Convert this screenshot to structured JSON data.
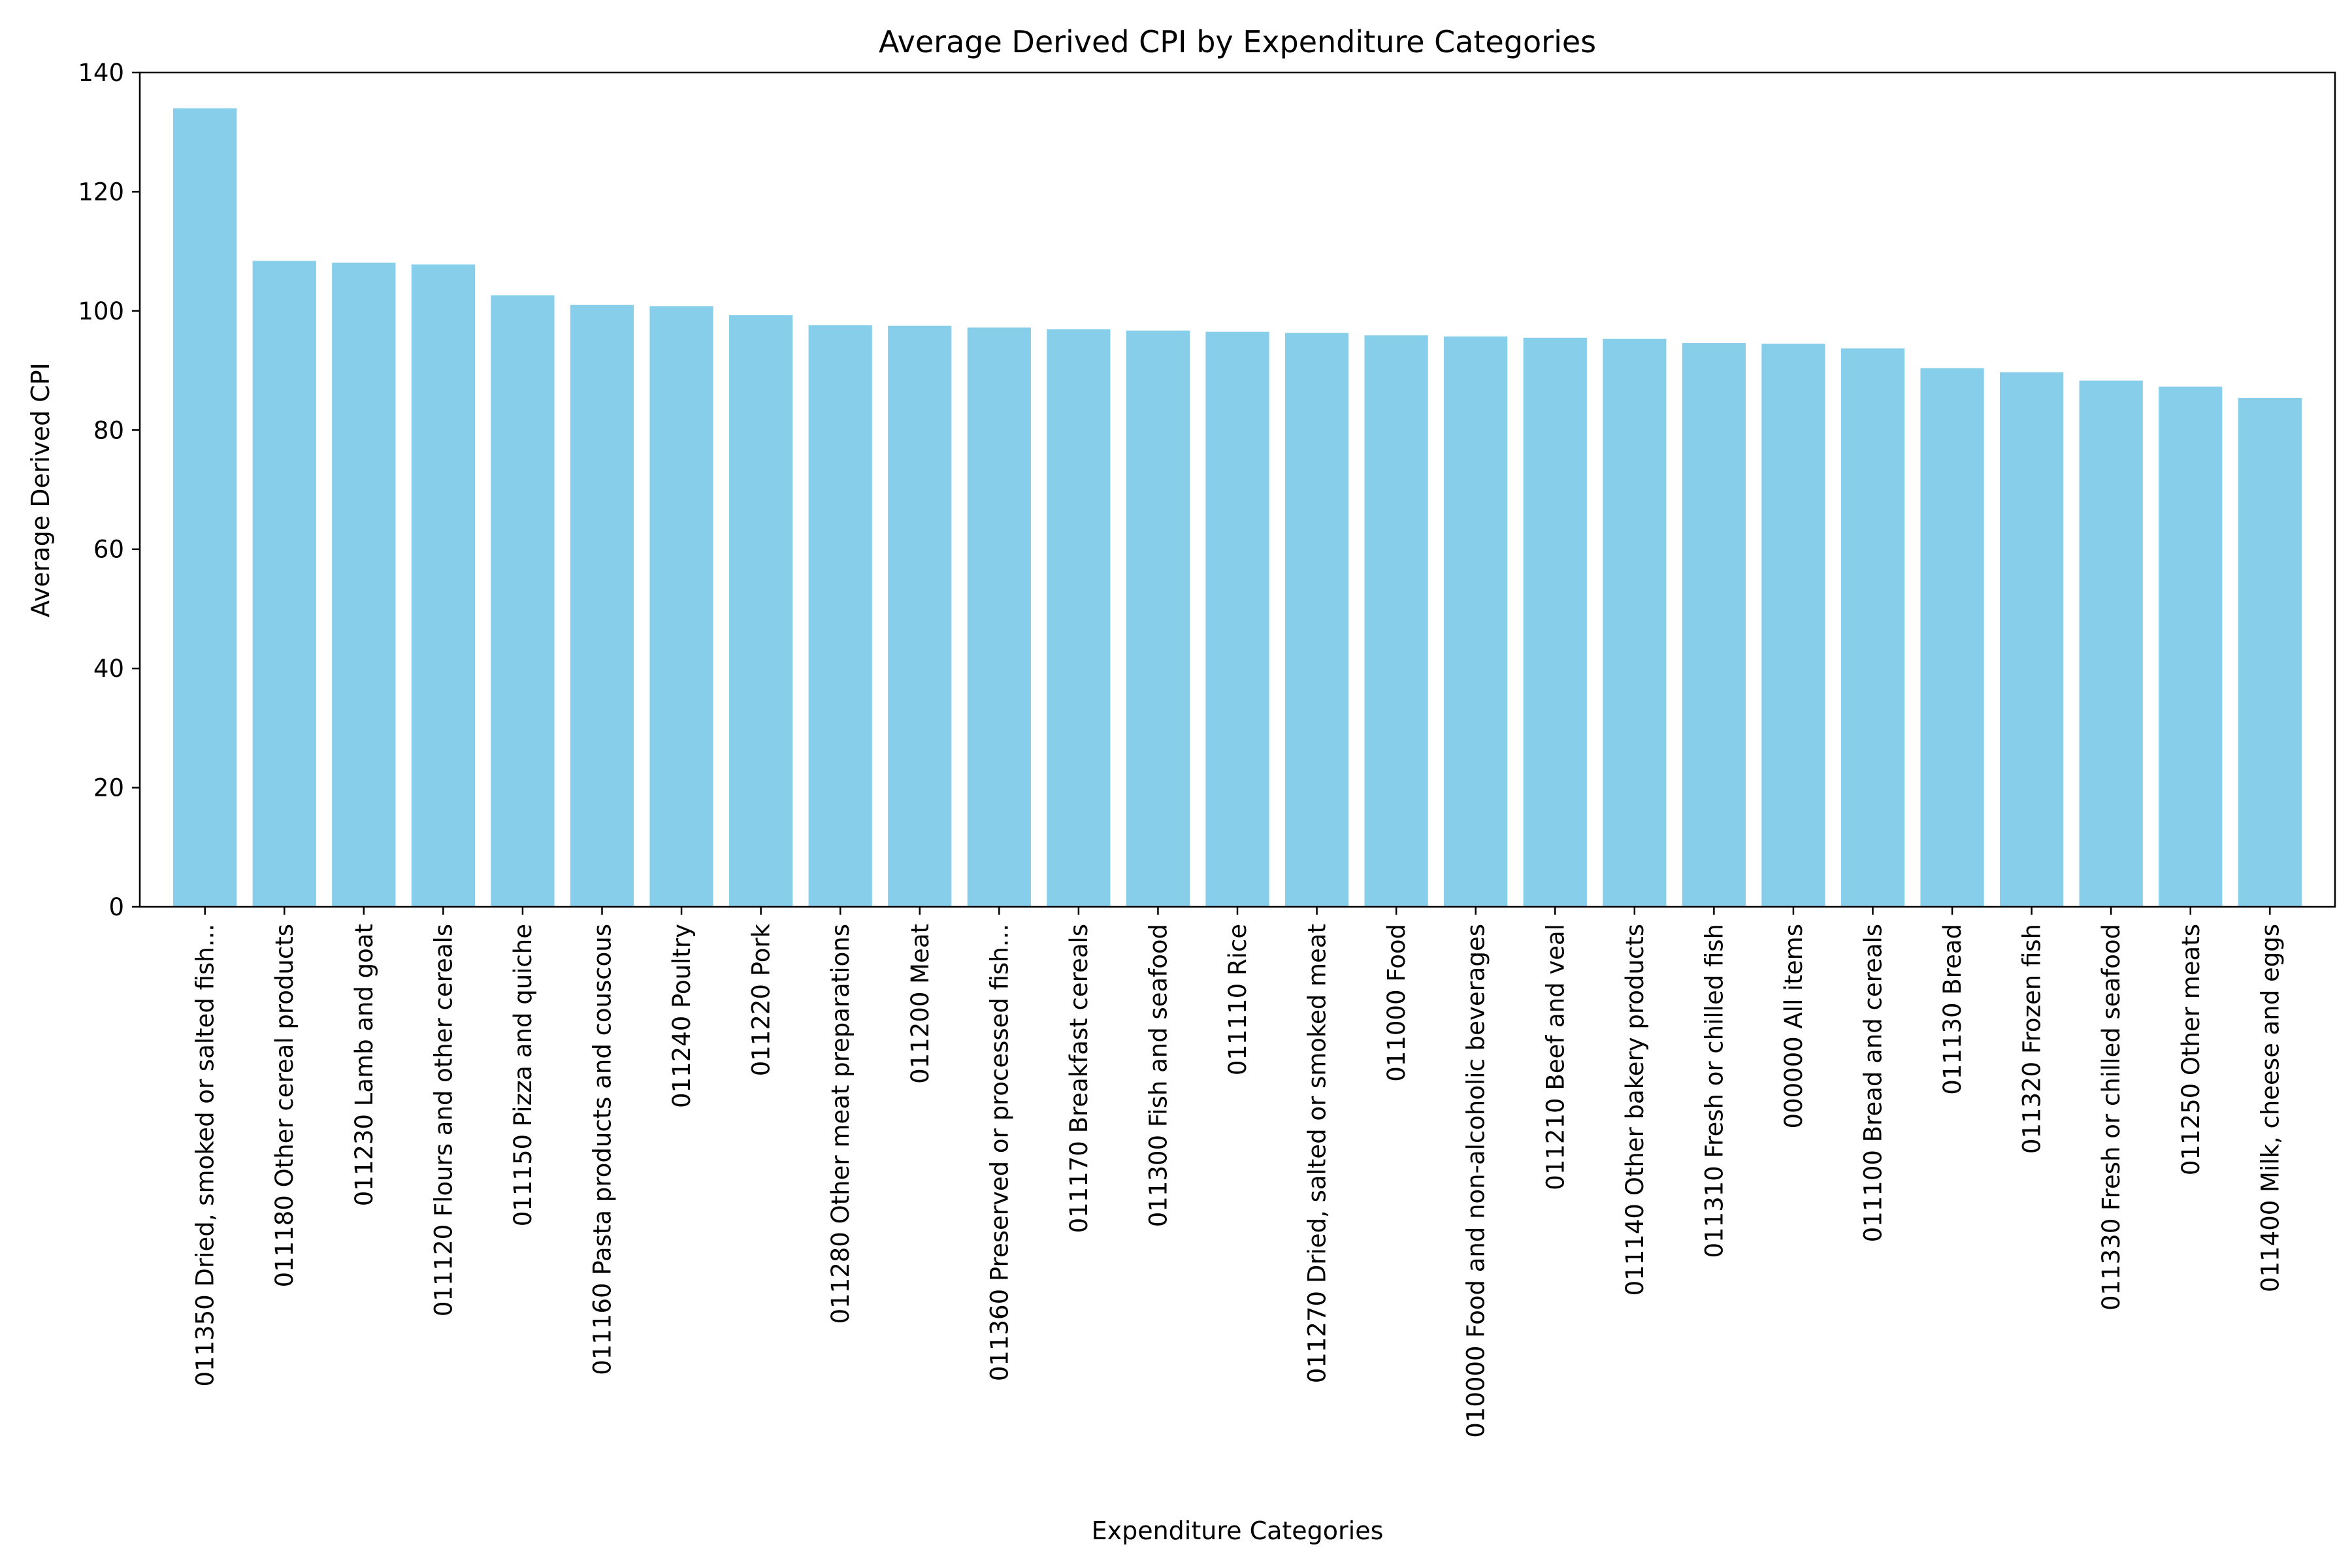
{
  "chart_data": {
    "type": "bar",
    "title": "Average Derived CPI by Expenditure Categories",
    "xlabel": "Expenditure Categories",
    "ylabel": "Average Derived CPI",
    "ylim": [
      0,
      140
    ],
    "yticks": [
      0,
      20,
      40,
      60,
      80,
      100,
      120,
      140
    ],
    "grid": false,
    "bar_color": "#87CEEB",
    "categories": [
      "011350 Dried, smoked or salted fish...",
      "011180 Other cereal products",
      "011230 Lamb and goat",
      "011120 Flours and other cereals",
      "011150 Pizza and quiche",
      "011160 Pasta products and couscous",
      "011240 Poultry",
      "011220 Pork",
      "011280 Other meat preparations",
      "011200 Meat",
      "011360 Preserved or processed fish...",
      "011170 Breakfast cereals",
      "011300 Fish and seafood",
      "011110 Rice",
      "011270 Dried, salted or smoked meat",
      "011000 Food",
      "010000 Food and non-alcoholic beverages",
      "011210 Beef and veal",
      "011140 Other bakery products",
      "011310 Fresh or chilled fish",
      "000000 All items",
      "011100 Bread and cereals",
      "011130 Bread",
      "011320 Frozen fish",
      "011330 Fresh or chilled seafood",
      "011250 Other meats",
      "011400 Milk, cheese and eggs"
    ],
    "values": [
      134.0,
      108.4,
      108.1,
      107.8,
      102.6,
      101.0,
      100.8,
      99.3,
      97.6,
      97.5,
      97.2,
      96.9,
      96.7,
      96.5,
      96.3,
      95.9,
      95.7,
      95.5,
      95.3,
      94.6,
      94.5,
      93.7,
      90.4,
      89.7,
      88.3,
      87.3,
      85.4
    ]
  }
}
